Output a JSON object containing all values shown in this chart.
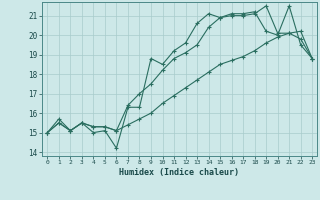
{
  "xlabel": "Humidex (Indice chaleur)",
  "bg_color": "#cde8e8",
  "grid_color": "#a8cccc",
  "line_color": "#2a6e60",
  "xlim": [
    -0.5,
    23.4
  ],
  "ylim": [
    13.8,
    21.7
  ],
  "yticks": [
    14,
    15,
    16,
    17,
    18,
    19,
    20,
    21
  ],
  "xticks": [
    0,
    1,
    2,
    3,
    4,
    5,
    6,
    7,
    8,
    9,
    10,
    11,
    12,
    13,
    14,
    15,
    16,
    17,
    18,
    19,
    20,
    21,
    22,
    23
  ],
  "line1_x": [
    0,
    1,
    2,
    3,
    4,
    5,
    6,
    7,
    8,
    9,
    10,
    11,
    12,
    13,
    14,
    15,
    16,
    17,
    18,
    19,
    20,
    21,
    22,
    23
  ],
  "line1_y": [
    15.0,
    15.7,
    15.1,
    15.5,
    15.0,
    15.1,
    14.2,
    16.3,
    16.3,
    18.8,
    18.5,
    19.2,
    19.6,
    20.6,
    21.1,
    20.9,
    21.1,
    21.1,
    21.2,
    20.2,
    20.0,
    21.5,
    19.5,
    18.8
  ],
  "line2_x": [
    0,
    1,
    2,
    3,
    4,
    5,
    6,
    7,
    8,
    9,
    10,
    11,
    12,
    13,
    14,
    15,
    16,
    17,
    18,
    19,
    20,
    21,
    22,
    23
  ],
  "line2_y": [
    15.0,
    15.5,
    15.1,
    15.5,
    15.3,
    15.3,
    15.1,
    15.4,
    15.7,
    16.0,
    16.5,
    16.9,
    17.3,
    17.7,
    18.1,
    18.5,
    18.7,
    18.9,
    19.2,
    19.6,
    19.9,
    20.1,
    20.2,
    18.8
  ],
  "line3_x": [
    0,
    1,
    2,
    3,
    4,
    5,
    6,
    7,
    8,
    9,
    10,
    11,
    12,
    13,
    14,
    15,
    16,
    17,
    18,
    19,
    20,
    21,
    22,
    23
  ],
  "line3_y": [
    15.0,
    15.5,
    15.1,
    15.5,
    15.3,
    15.3,
    15.1,
    16.4,
    17.0,
    17.5,
    18.2,
    18.8,
    19.1,
    19.5,
    20.4,
    20.9,
    21.0,
    21.0,
    21.1,
    21.5,
    20.1,
    20.1,
    19.8,
    18.8
  ]
}
